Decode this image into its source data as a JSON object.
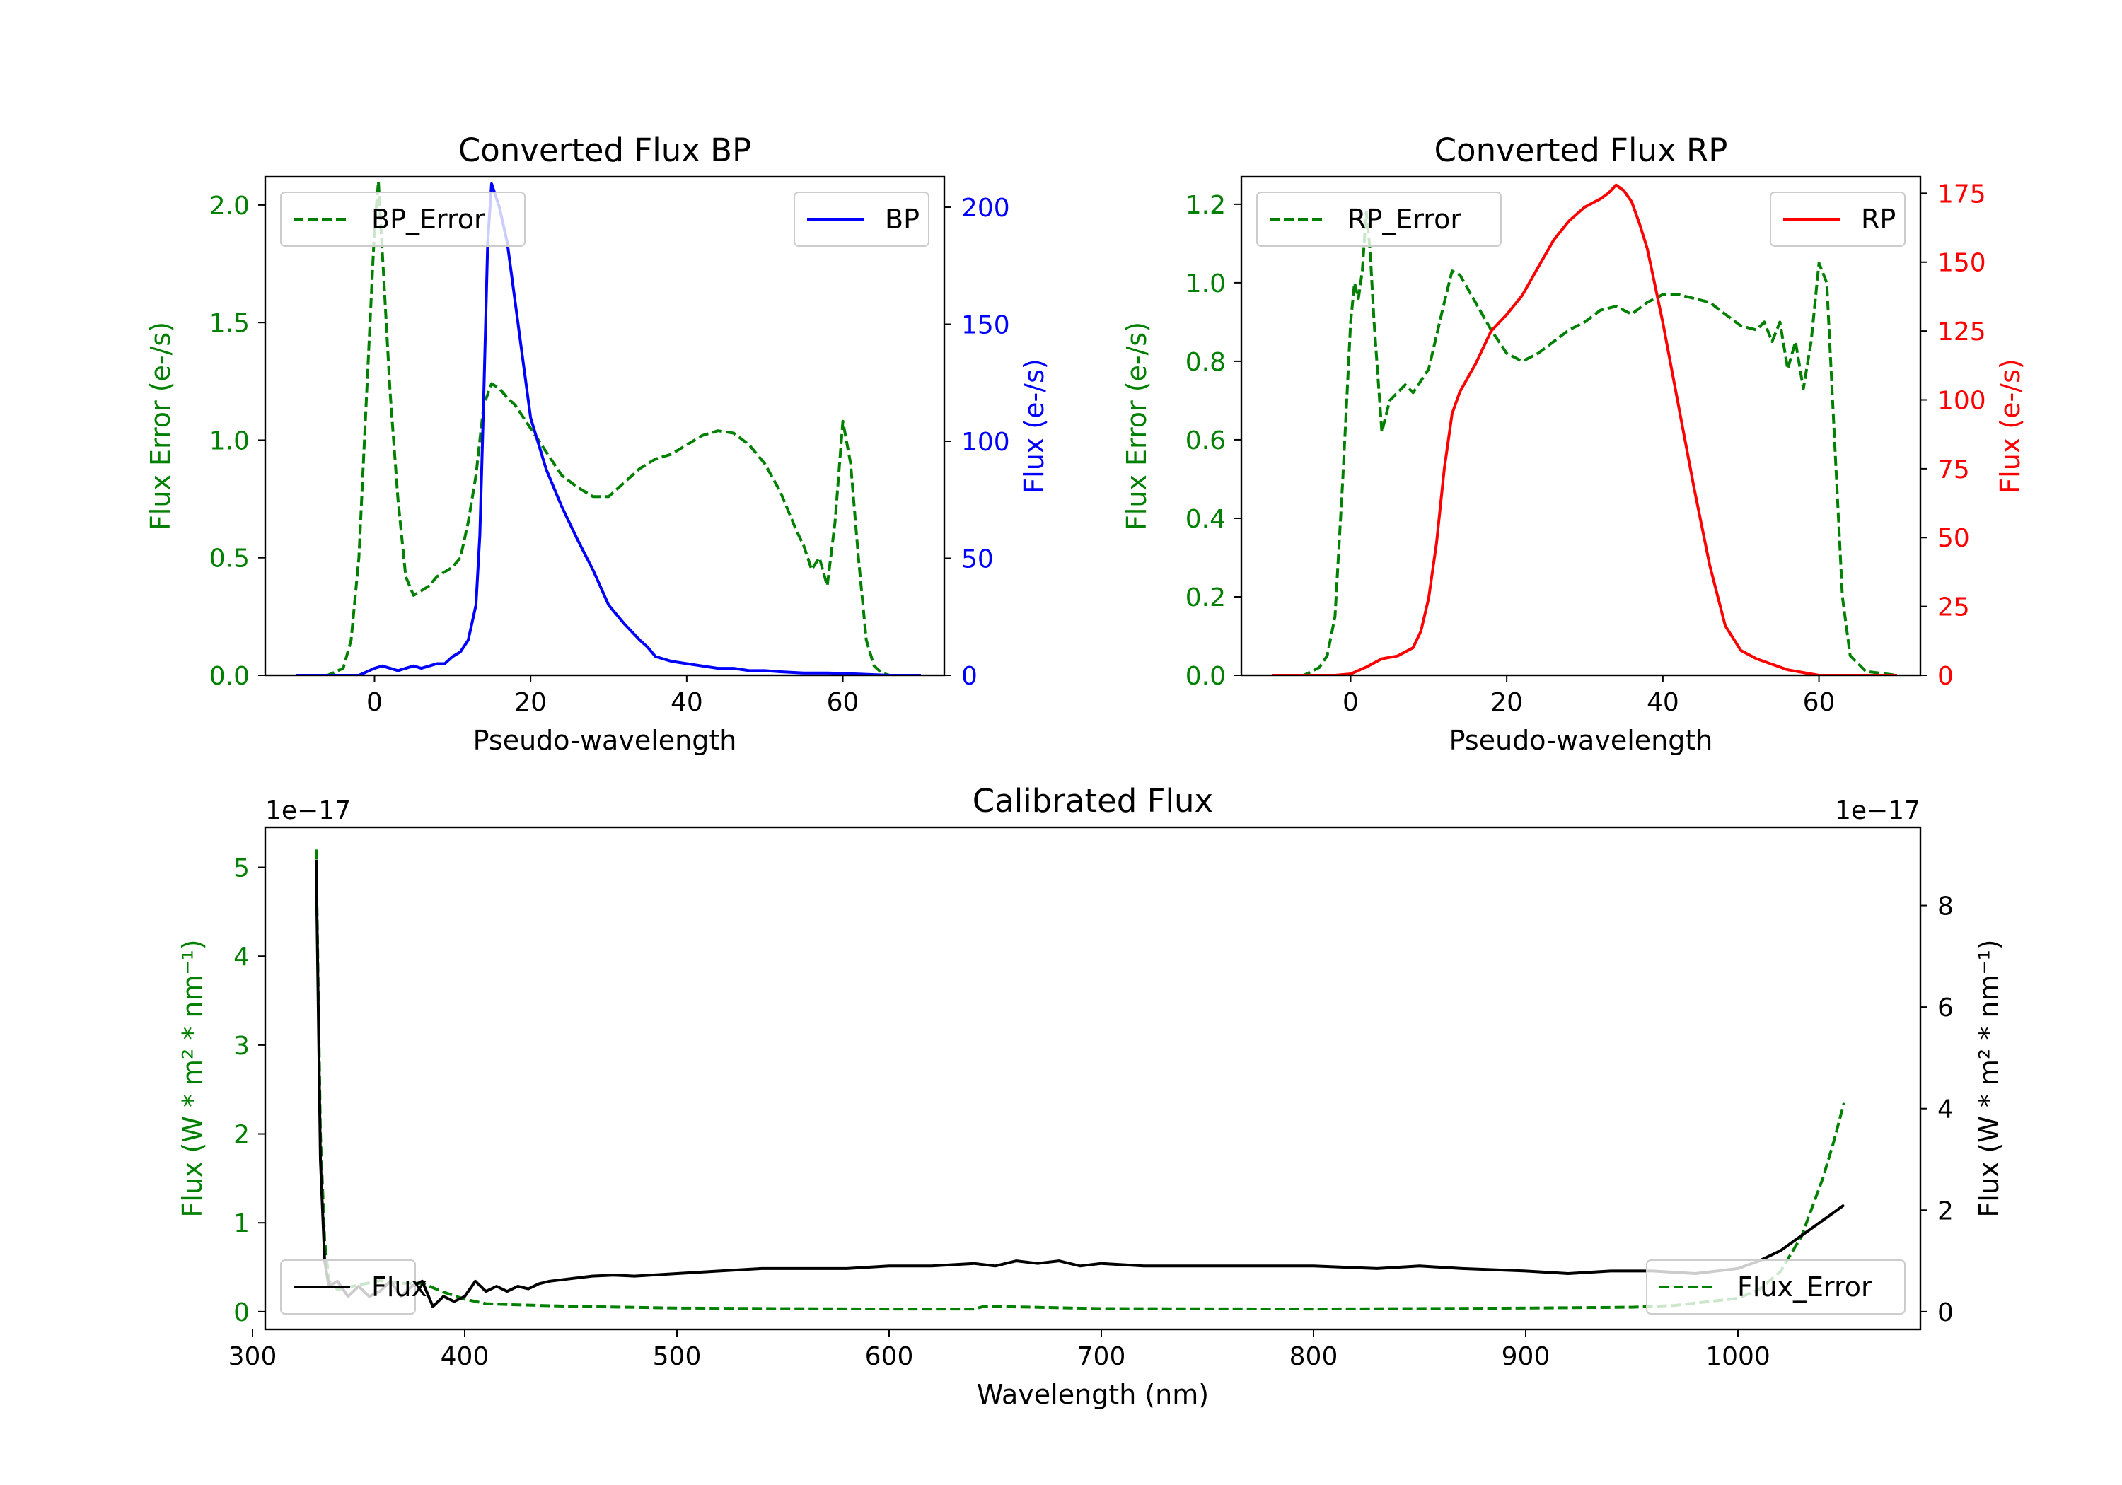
{
  "chart_data": [
    {
      "type": "line",
      "title": "Converted Flux BP",
      "xlabel": "Pseudo-wavelength",
      "ylabel_left": "Flux Error (e-/s)",
      "ylabel_right": "Flux (e-/s)",
      "xlim": [
        -14,
        73
      ],
      "ylim_left": [
        0,
        2.12
      ],
      "ylim_right": [
        0,
        213
      ],
      "xticks": [
        0,
        20,
        40,
        60
      ],
      "yticks_left": [
        "0.0",
        "0.5",
        "1.0",
        "1.5",
        "2.0"
      ],
      "yticks_right": [
        "0",
        "50",
        "100",
        "150",
        "200"
      ],
      "left_color": "#008000",
      "right_color": "#0000ff",
      "series": [
        {
          "name": "BP_Error",
          "axis": "left",
          "style": "dashed",
          "color": "#008000",
          "legend": "top-left",
          "x": [
            -10,
            -6,
            -4,
            -3,
            -2,
            -1,
            0,
            0.5,
            1,
            2,
            3,
            4,
            5,
            6,
            7,
            8,
            9,
            10,
            11,
            12,
            13,
            14,
            15,
            16,
            17,
            18,
            20,
            22,
            24,
            26,
            28,
            30,
            32,
            34,
            36,
            38,
            40,
            42,
            44,
            46,
            48,
            50,
            52,
            54,
            55,
            56,
            57,
            58,
            59,
            60,
            61,
            62,
            63,
            64,
            65,
            66,
            68,
            70
          ],
          "y": [
            0,
            0,
            0.03,
            0.15,
            0.5,
            1.2,
            1.9,
            2.1,
            1.8,
            1.2,
            0.75,
            0.42,
            0.34,
            0.36,
            0.38,
            0.42,
            0.44,
            0.46,
            0.5,
            0.65,
            0.85,
            1.15,
            1.24,
            1.22,
            1.18,
            1.15,
            1.05,
            0.95,
            0.85,
            0.8,
            0.76,
            0.76,
            0.82,
            0.88,
            0.92,
            0.94,
            0.98,
            1.02,
            1.04,
            1.03,
            0.98,
            0.9,
            0.78,
            0.62,
            0.55,
            0.45,
            0.5,
            0.38,
            0.65,
            1.08,
            0.9,
            0.5,
            0.15,
            0.04,
            0.01,
            0,
            0,
            0
          ]
        },
        {
          "name": "BP",
          "axis": "right",
          "style": "solid",
          "color": "#0000ff",
          "legend": "top-right",
          "x": [
            -10,
            -6,
            -4,
            -2,
            0,
            1,
            2,
            3,
            4,
            5,
            6,
            7,
            8,
            9,
            10,
            11,
            12,
            13,
            13.5,
            14,
            14.5,
            15,
            15.5,
            16,
            17,
            18,
            19,
            20,
            22,
            24,
            26,
            28,
            30,
            32,
            34,
            35,
            36,
            38,
            40,
            42,
            44,
            46,
            48,
            50,
            52,
            55,
            58,
            60,
            62,
            66,
            70
          ],
          "y": [
            0,
            0,
            0,
            0,
            3,
            4,
            3,
            2,
            3,
            4,
            3,
            4,
            5,
            5,
            8,
            10,
            15,
            30,
            60,
            120,
            185,
            210,
            205,
            200,
            185,
            160,
            135,
            110,
            88,
            72,
            58,
            45,
            30,
            22,
            15,
            12,
            8,
            6,
            5,
            4,
            3,
            3,
            2,
            2,
            1.5,
            1,
            1,
            0.8,
            0.5,
            0,
            0
          ]
        }
      ]
    },
    {
      "type": "line",
      "title": "Converted Flux RP",
      "xlabel": "Pseudo-wavelength",
      "ylabel_left": "Flux Error (e-/s)",
      "ylabel_right": "Flux (e-/s)",
      "xlim": [
        -14,
        73
      ],
      "ylim_left": [
        0,
        1.27
      ],
      "ylim_right": [
        0,
        181
      ],
      "xticks": [
        0,
        20,
        40,
        60
      ],
      "yticks_left": [
        "0.0",
        "0.2",
        "0.4",
        "0.6",
        "0.8",
        "1.0",
        "1.2"
      ],
      "yticks_right": [
        "0",
        "25",
        "50",
        "75",
        "100",
        "125",
        "150",
        "175"
      ],
      "left_color": "#008000",
      "right_color": "#ff0000",
      "series": [
        {
          "name": "RP_Error",
          "axis": "left",
          "style": "dashed",
          "color": "#008000",
          "legend": "top-left",
          "x": [
            -10,
            -6,
            -4,
            -3,
            -2,
            -1,
            0,
            0.5,
            1,
            1.5,
            2,
            2.5,
            3,
            4,
            5,
            6,
            7,
            8,
            9,
            10,
            12,
            13,
            14,
            16,
            18,
            20,
            22,
            24,
            26,
            28,
            30,
            32,
            34,
            36,
            38,
            40,
            42,
            44,
            46,
            48,
            50,
            52,
            53,
            54,
            55,
            56,
            57,
            58,
            59,
            60,
            61,
            62,
            63,
            64,
            66,
            70
          ],
          "y": [
            0,
            0,
            0.02,
            0.05,
            0.15,
            0.5,
            0.9,
            1.0,
            0.96,
            1.03,
            1.18,
            1.08,
            0.9,
            0.62,
            0.7,
            0.72,
            0.74,
            0.72,
            0.75,
            0.78,
            0.95,
            1.03,
            1.02,
            0.95,
            0.88,
            0.82,
            0.8,
            0.82,
            0.85,
            0.88,
            0.9,
            0.93,
            0.94,
            0.92,
            0.95,
            0.97,
            0.97,
            0.96,
            0.95,
            0.92,
            0.89,
            0.88,
            0.9,
            0.85,
            0.9,
            0.78,
            0.85,
            0.73,
            0.85,
            1.05,
            1.0,
            0.6,
            0.2,
            0.05,
            0.01,
            0
          ]
        },
        {
          "name": "RP",
          "axis": "right",
          "style": "solid",
          "color": "#ff0000",
          "legend": "top-right",
          "x": [
            -10,
            -6,
            -4,
            -2,
            0,
            2,
            4,
            6,
            8,
            9,
            10,
            11,
            12,
            13,
            14,
            15,
            16,
            18,
            20,
            22,
            24,
            26,
            28,
            30,
            32,
            33,
            34,
            35,
            36,
            37,
            38,
            40,
            42,
            44,
            46,
            48,
            50,
            52,
            54,
            56,
            58,
            60,
            62,
            64,
            66,
            70
          ],
          "y": [
            0,
            0,
            0,
            0,
            0.5,
            3,
            6,
            7,
            10,
            16,
            28,
            48,
            75,
            95,
            103,
            108,
            113,
            125,
            131,
            138,
            148,
            158,
            165,
            170,
            173,
            175,
            178,
            176,
            172,
            164,
            155,
            128,
            98,
            68,
            40,
            18,
            9,
            6,
            4,
            2,
            1,
            0,
            0,
            0,
            0,
            0
          ]
        }
      ]
    },
    {
      "type": "line",
      "title": "Calibrated Flux",
      "xlabel": "Wavelength (nm)",
      "ylabel_left": "Flux (W * m² * nm⁻¹)",
      "ylabel_right": "Flux (W * m² * nm⁻¹)",
      "offset_left": "1e−17",
      "offset_right": "1e−17",
      "xlim": [
        306,
        1086
      ],
      "ylim_left": [
        -0.2,
        5.45
      ],
      "ylim_right": [
        -0.35,
        9.54
      ],
      "xticks": [
        300,
        400,
        500,
        600,
        700,
        800,
        900,
        1000
      ],
      "yticks_left": [
        "0",
        "1",
        "2",
        "3",
        "4",
        "5"
      ],
      "yticks_right": [
        "0",
        "2",
        "4",
        "6",
        "8"
      ],
      "left_color": "#008000",
      "right_color": "#000000",
      "series": [
        {
          "name": "Flux_Error",
          "axis": "left",
          "style": "dashed",
          "color": "#008000",
          "legend": "bottom-right",
          "x": [
            330,
            332,
            334,
            336,
            340,
            350,
            360,
            370,
            380,
            390,
            400,
            410,
            420,
            450,
            500,
            550,
            600,
            640,
            645,
            700,
            800,
            900,
            950,
            970,
            1000,
            1010,
            1020,
            1030,
            1040,
            1045,
            1050
          ],
          "y": [
            5.2,
            2.0,
            0.8,
            0.35,
            0.25,
            0.3,
            0.35,
            0.32,
            0.32,
            0.22,
            0.14,
            0.09,
            0.08,
            0.06,
            0.04,
            0.035,
            0.03,
            0.03,
            0.06,
            0.035,
            0.03,
            0.04,
            0.05,
            0.07,
            0.15,
            0.25,
            0.45,
            0.85,
            1.5,
            1.9,
            2.35
          ]
        },
        {
          "name": "Flux",
          "axis": "right",
          "style": "solid",
          "color": "#000000",
          "legend": "bottom-left",
          "x": [
            330,
            332,
            334,
            336,
            340,
            345,
            350,
            355,
            360,
            365,
            370,
            375,
            380,
            385,
            390,
            395,
            400,
            405,
            410,
            415,
            420,
            425,
            430,
            435,
            440,
            450,
            460,
            470,
            480,
            500,
            520,
            540,
            560,
            580,
            600,
            620,
            640,
            650,
            660,
            670,
            680,
            690,
            700,
            720,
            750,
            800,
            830,
            850,
            870,
            900,
            920,
            940,
            960,
            980,
            1000,
            1010,
            1020,
            1030,
            1040,
            1050
          ],
          "y": [
            8.9,
            3.0,
            1.0,
            0.5,
            0.6,
            0.3,
            0.5,
            0.3,
            0.4,
            0.6,
            0.3,
            0.5,
            0.6,
            0.1,
            0.3,
            0.2,
            0.3,
            0.6,
            0.4,
            0.5,
            0.4,
            0.5,
            0.45,
            0.55,
            0.6,
            0.65,
            0.7,
            0.72,
            0.7,
            0.75,
            0.8,
            0.85,
            0.85,
            0.85,
            0.9,
            0.9,
            0.95,
            0.9,
            1.0,
            0.95,
            1.0,
            0.9,
            0.95,
            0.9,
            0.9,
            0.9,
            0.85,
            0.9,
            0.85,
            0.8,
            0.75,
            0.8,
            0.8,
            0.75,
            0.85,
            1.0,
            1.2,
            1.5,
            1.8,
            2.1
          ]
        }
      ]
    }
  ]
}
